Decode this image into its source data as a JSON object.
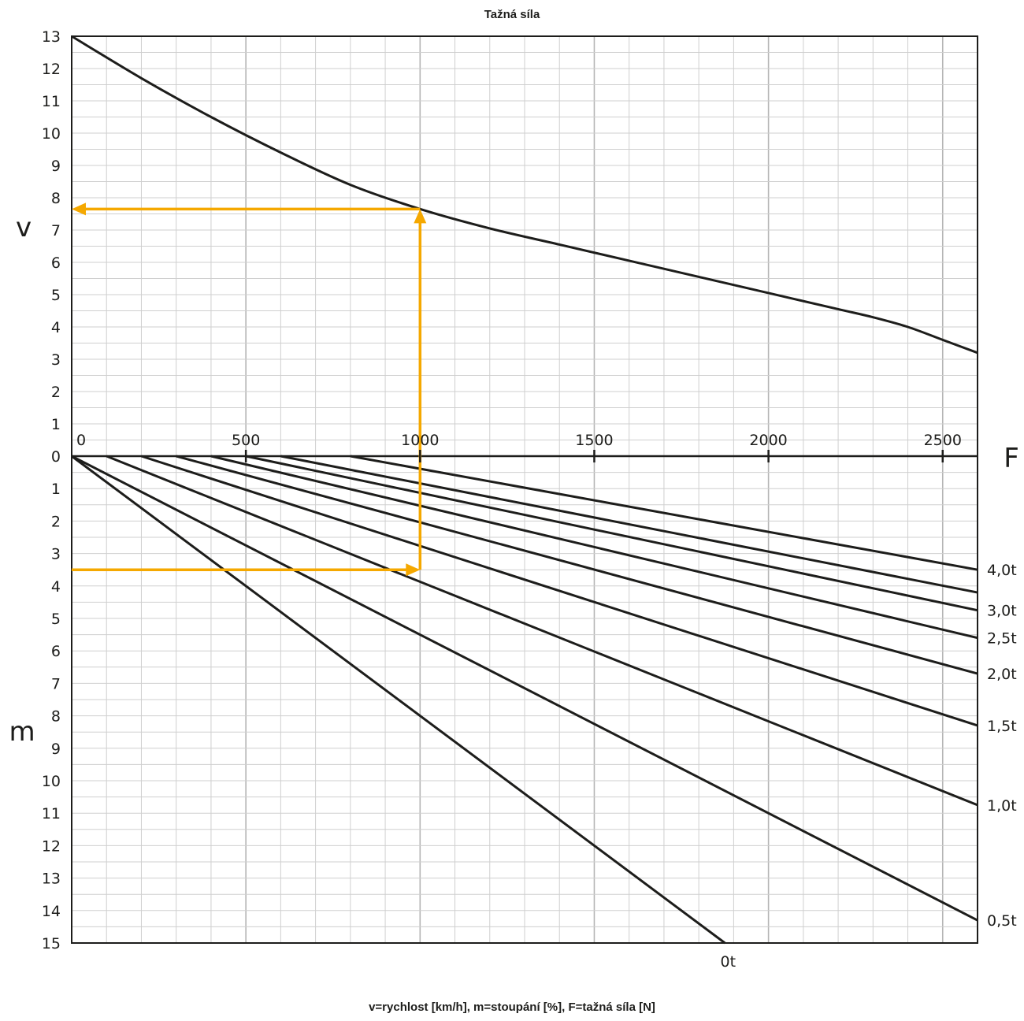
{
  "title": "Tažná síla",
  "footer": "v=rychlost [km/h], m=stoupání [%], F=tažná síla [N]",
  "colors": {
    "curve": "#1d1d1b",
    "highlight": "#f5a800",
    "grid": "#cfcfcf",
    "grid_major": "#b5b5b5"
  },
  "chart_data": [
    {
      "type": "line",
      "panel": "top",
      "axis_letter_y": "v",
      "axis_letter_x": "F",
      "xlim": [
        0,
        2600
      ],
      "ylim": [
        0,
        13
      ],
      "x_ticks": [
        "0",
        "500",
        "1000",
        "1500",
        "2000",
        "2500"
      ],
      "x_tick_values": [
        0,
        500,
        1000,
        1500,
        2000,
        2500
      ],
      "y_ticks": [
        "0",
        "1",
        "2",
        "3",
        "4",
        "5",
        "6",
        "7",
        "8",
        "9",
        "10",
        "11",
        "12",
        "13"
      ],
      "grid": true,
      "series": [
        {
          "x": [
            0,
            200,
            400,
            600,
            800,
            1000,
            1200,
            1400,
            1600,
            1800,
            2000,
            2200,
            2300,
            2400,
            2500,
            2600
          ],
          "y": [
            13.0,
            11.7,
            10.5,
            9.4,
            8.4,
            7.65,
            7.05,
            6.55,
            6.05,
            5.55,
            5.05,
            4.55,
            4.3,
            4.0,
            3.6,
            3.2
          ]
        }
      ],
      "annotation": {
        "type": "arrow-path",
        "from_x": 1000,
        "to_y": 7.65
      }
    },
    {
      "type": "line",
      "panel": "bottom",
      "axis_letter_y": "m",
      "xlim": [
        0,
        2600
      ],
      "ylim": [
        0,
        15
      ],
      "y_inverted": true,
      "y_ticks": [
        "0",
        "1",
        "2",
        "3",
        "4",
        "5",
        "6",
        "7",
        "8",
        "9",
        "10",
        "11",
        "12",
        "13",
        "14",
        "15"
      ],
      "grid": true,
      "series": [
        {
          "label": "0t",
          "x": [
            0,
            1875
          ],
          "y": [
            0,
            15
          ]
        },
        {
          "label": "0,5t",
          "x": [
            0,
            2600
          ],
          "y": [
            0,
            14.3
          ]
        },
        {
          "label": "1,0t",
          "x": [
            100,
            2600
          ],
          "y": [
            0,
            10.75
          ]
        },
        {
          "label": "1,5t",
          "x": [
            200,
            2600
          ],
          "y": [
            0,
            8.3
          ]
        },
        {
          "label": "2,0t",
          "x": [
            300,
            2600
          ],
          "y": [
            0,
            6.7
          ]
        },
        {
          "label": "2,5t",
          "x": [
            400,
            2600
          ],
          "y": [
            0,
            5.6
          ]
        },
        {
          "label": "3,0t",
          "x": [
            500,
            2600
          ],
          "y": [
            0,
            4.75
          ]
        },
        {
          "label": "",
          "x": [
            600,
            2600
          ],
          "y": [
            0,
            4.2
          ]
        },
        {
          "label": "4,0t",
          "x": [
            800,
            2600
          ],
          "y": [
            0,
            3.5
          ]
        }
      ],
      "annotation": {
        "type": "arrow-path",
        "from_y": 3.5,
        "to_x": 1000
      }
    }
  ]
}
